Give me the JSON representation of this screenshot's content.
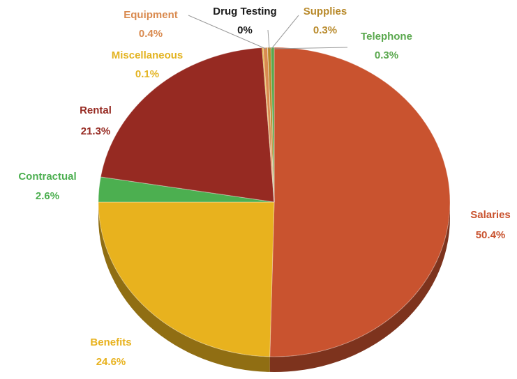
{
  "chart_data": {
    "type": "pie",
    "title": "",
    "slices": [
      {
        "label": "Salaries",
        "value": 50.4,
        "display": "50.4%",
        "color": "#c9532f"
      },
      {
        "label": "Benefits",
        "value": 24.6,
        "display": "24.6%",
        "color": "#e8b21e"
      },
      {
        "label": "Contractual",
        "value": 2.6,
        "display": "2.6%",
        "color": "#4caf50"
      },
      {
        "label": "Rental",
        "value": 21.3,
        "display": "21.3%",
        "color": "#962a22"
      },
      {
        "label": "Miscellaneous",
        "value": 0.1,
        "display": "0.1%",
        "color": "#e3b321"
      },
      {
        "label": "Equipment",
        "value": 0.4,
        "display": "0.4%",
        "color": "#d98a4f"
      },
      {
        "label": "Drug Testing",
        "value": 0.0,
        "display": "0%",
        "color": "#222222"
      },
      {
        "label": "Supplies",
        "value": 0.3,
        "display": "0.3%",
        "color": "#b8892a"
      },
      {
        "label": "Telephone",
        "value": 0.3,
        "display": "0.3%",
        "color": "#5aa84e"
      }
    ],
    "style": "3d-tilted",
    "legend": "none"
  }
}
